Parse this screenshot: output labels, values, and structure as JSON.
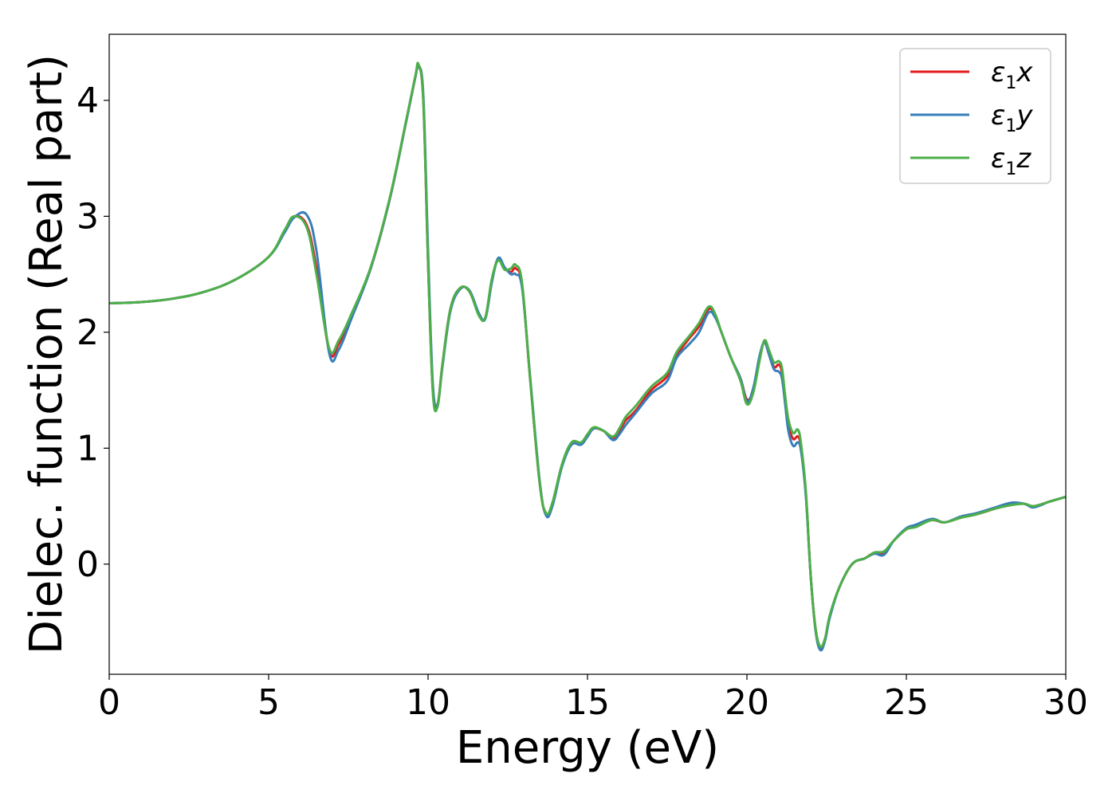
{
  "chart_data": {
    "type": "line",
    "title": "",
    "xlabel": "Energy (eV)",
    "ylabel": "Dielec. function (Real part)",
    "xlim": [
      0,
      30
    ],
    "ylim": [
      -0.95,
      4.57
    ],
    "xticks": [
      0,
      5,
      10,
      15,
      20,
      25,
      30
    ],
    "xtick_labels": [
      "0",
      "5",
      "10",
      "15",
      "20",
      "25",
      "30"
    ],
    "yticks": [
      0,
      1,
      2,
      3,
      4
    ],
    "ytick_labels": [
      "0",
      "1",
      "2",
      "3",
      "4"
    ],
    "grid": false,
    "legend_position": "top-right",
    "series": [
      {
        "name": "ε1x",
        "legend": {
          "base": "ε",
          "sub": "1",
          "tail": "x"
        },
        "color": "#e41a1c",
        "x": [
          0,
          1,
          2,
          3,
          4,
          5,
          5.5,
          5.8,
          6.2,
          6.5,
          6.9,
          7.2,
          7.6,
          8.2,
          8.8,
          9.3,
          9.6,
          9.7,
          9.85,
          10.0,
          10.15,
          10.3,
          10.45,
          10.7,
          11.0,
          11.3,
          11.6,
          11.8,
          12.0,
          12.2,
          12.4,
          12.6,
          12.75,
          12.95,
          13.2,
          13.5,
          13.7,
          13.9,
          14.2,
          14.5,
          14.8,
          15.0,
          15.2,
          15.5,
          15.8,
          16.0,
          16.2,
          16.5,
          17.0,
          17.5,
          17.8,
          18.2,
          18.5,
          18.8,
          19.0,
          19.2,
          19.5,
          19.8,
          20.0,
          20.2,
          20.4,
          20.55,
          20.7,
          20.85,
          21.0,
          21.1,
          21.2,
          21.3,
          21.45,
          21.6,
          21.7,
          21.85,
          22.0,
          22.15,
          22.3,
          22.45,
          22.6,
          22.9,
          23.3,
          23.7,
          24.0,
          24.3,
          24.6,
          25.0,
          25.3,
          25.8,
          26.2,
          26.7,
          27.2,
          27.8,
          28.3,
          28.7,
          29.0,
          29.5,
          30.0
        ],
        "y": [
          2.25,
          2.26,
          2.29,
          2.35,
          2.46,
          2.65,
          2.87,
          3.0,
          2.92,
          2.55,
          1.84,
          1.9,
          2.15,
          2.55,
          3.15,
          3.8,
          4.2,
          4.3,
          4.0,
          2.6,
          1.5,
          1.38,
          1.72,
          2.2,
          2.38,
          2.35,
          2.15,
          2.13,
          2.45,
          2.63,
          2.55,
          2.52,
          2.55,
          2.4,
          1.6,
          0.7,
          0.43,
          0.52,
          0.85,
          1.04,
          1.04,
          1.11,
          1.17,
          1.15,
          1.09,
          1.15,
          1.24,
          1.32,
          1.5,
          1.62,
          1.8,
          1.95,
          2.05,
          2.2,
          2.15,
          2.0,
          1.78,
          1.6,
          1.42,
          1.5,
          1.78,
          1.92,
          1.82,
          1.7,
          1.72,
          1.65,
          1.4,
          1.2,
          1.08,
          1.1,
          1.0,
          0.6,
          -0.1,
          -0.55,
          -0.72,
          -0.65,
          -0.45,
          -0.2,
          0.0,
          0.05,
          0.1,
          0.1,
          0.2,
          0.3,
          0.33,
          0.38,
          0.36,
          0.4,
          0.43,
          0.48,
          0.52,
          0.52,
          0.5,
          0.54,
          0.58
        ]
      },
      {
        "name": "ε1y",
        "legend": {
          "base": "ε",
          "sub": "1",
          "tail": "y"
        },
        "color": "#377eb8",
        "x": [
          0,
          1,
          2,
          3,
          4,
          5,
          5.5,
          5.8,
          6.2,
          6.5,
          6.9,
          7.2,
          7.6,
          8.2,
          8.8,
          9.3,
          9.6,
          9.7,
          9.85,
          10.0,
          10.15,
          10.3,
          10.45,
          10.7,
          11.0,
          11.3,
          11.6,
          11.8,
          12.0,
          12.2,
          12.4,
          12.6,
          12.75,
          12.95,
          13.2,
          13.5,
          13.7,
          13.9,
          14.2,
          14.5,
          14.8,
          15.0,
          15.2,
          15.5,
          15.8,
          16.0,
          16.2,
          16.5,
          17.0,
          17.5,
          17.8,
          18.2,
          18.5,
          18.8,
          19.0,
          19.2,
          19.5,
          19.8,
          20.0,
          20.2,
          20.4,
          20.55,
          20.7,
          20.85,
          21.0,
          21.1,
          21.2,
          21.3,
          21.45,
          21.6,
          21.7,
          21.85,
          22.0,
          22.15,
          22.3,
          22.45,
          22.6,
          22.9,
          23.3,
          23.7,
          24.0,
          24.3,
          24.6,
          25.0,
          25.3,
          25.8,
          26.2,
          26.7,
          27.2,
          27.8,
          28.3,
          28.7,
          29.0,
          29.5,
          30.0
        ],
        "y": [
          2.25,
          2.26,
          2.29,
          2.35,
          2.46,
          2.65,
          2.86,
          2.99,
          3.01,
          2.7,
          1.82,
          1.85,
          2.12,
          2.55,
          3.15,
          3.8,
          4.2,
          4.29,
          4.05,
          2.7,
          1.55,
          1.38,
          1.7,
          2.18,
          2.37,
          2.36,
          2.16,
          2.12,
          2.43,
          2.64,
          2.56,
          2.5,
          2.5,
          2.38,
          1.62,
          0.72,
          0.42,
          0.5,
          0.84,
          1.03,
          1.03,
          1.1,
          1.17,
          1.15,
          1.07,
          1.12,
          1.2,
          1.3,
          1.47,
          1.58,
          1.78,
          1.9,
          2.0,
          2.17,
          2.13,
          2.0,
          1.78,
          1.6,
          1.4,
          1.52,
          1.8,
          1.91,
          1.8,
          1.68,
          1.66,
          1.6,
          1.38,
          1.15,
          1.02,
          1.05,
          0.97,
          0.58,
          -0.1,
          -0.57,
          -0.74,
          -0.66,
          -0.46,
          -0.2,
          0.0,
          0.05,
          0.09,
          0.08,
          0.2,
          0.31,
          0.34,
          0.39,
          0.36,
          0.41,
          0.44,
          0.49,
          0.53,
          0.52,
          0.49,
          0.54,
          0.58
        ]
      },
      {
        "name": "ε1z",
        "legend": {
          "base": "ε",
          "sub": "1",
          "tail": "z"
        },
        "color": "#4daf4a",
        "x": [
          0,
          1,
          2,
          3,
          4,
          5,
          5.5,
          5.8,
          6.2,
          6.5,
          6.9,
          7.2,
          7.6,
          8.2,
          8.8,
          9.3,
          9.6,
          9.7,
          9.85,
          10.0,
          10.15,
          10.3,
          10.45,
          10.7,
          11.0,
          11.3,
          11.6,
          11.8,
          12.0,
          12.2,
          12.4,
          12.6,
          12.75,
          12.95,
          13.2,
          13.5,
          13.7,
          13.9,
          14.2,
          14.5,
          14.8,
          15.0,
          15.2,
          15.5,
          15.8,
          16.0,
          16.2,
          16.5,
          17.0,
          17.5,
          17.8,
          18.2,
          18.5,
          18.8,
          19.0,
          19.2,
          19.5,
          19.8,
          20.0,
          20.2,
          20.4,
          20.55,
          20.7,
          20.85,
          21.0,
          21.1,
          21.2,
          21.3,
          21.45,
          21.6,
          21.7,
          21.85,
          22.0,
          22.15,
          22.3,
          22.45,
          22.6,
          22.9,
          23.3,
          23.7,
          24.0,
          24.3,
          24.6,
          25.0,
          25.3,
          25.8,
          26.2,
          26.7,
          27.2,
          27.8,
          28.3,
          28.7,
          29.0,
          29.5,
          30.0
        ],
        "y": [
          2.25,
          2.26,
          2.29,
          2.35,
          2.46,
          2.65,
          2.88,
          3.0,
          2.9,
          2.5,
          1.86,
          1.93,
          2.16,
          2.56,
          3.16,
          3.81,
          4.21,
          4.31,
          4.0,
          2.6,
          1.48,
          1.36,
          1.72,
          2.2,
          2.38,
          2.35,
          2.14,
          2.13,
          2.46,
          2.62,
          2.54,
          2.55,
          2.58,
          2.42,
          1.6,
          0.7,
          0.44,
          0.53,
          0.86,
          1.05,
          1.05,
          1.12,
          1.18,
          1.15,
          1.1,
          1.17,
          1.27,
          1.36,
          1.53,
          1.65,
          1.83,
          1.97,
          2.08,
          2.22,
          2.16,
          2.0,
          1.78,
          1.58,
          1.38,
          1.48,
          1.76,
          1.93,
          1.84,
          1.74,
          1.75,
          1.69,
          1.45,
          1.25,
          1.13,
          1.16,
          1.03,
          0.62,
          -0.1,
          -0.55,
          -0.71,
          -0.64,
          -0.44,
          -0.2,
          0.0,
          0.05,
          0.1,
          0.11,
          0.2,
          0.3,
          0.32,
          0.38,
          0.36,
          0.4,
          0.43,
          0.48,
          0.51,
          0.52,
          0.5,
          0.54,
          0.58
        ]
      }
    ]
  }
}
